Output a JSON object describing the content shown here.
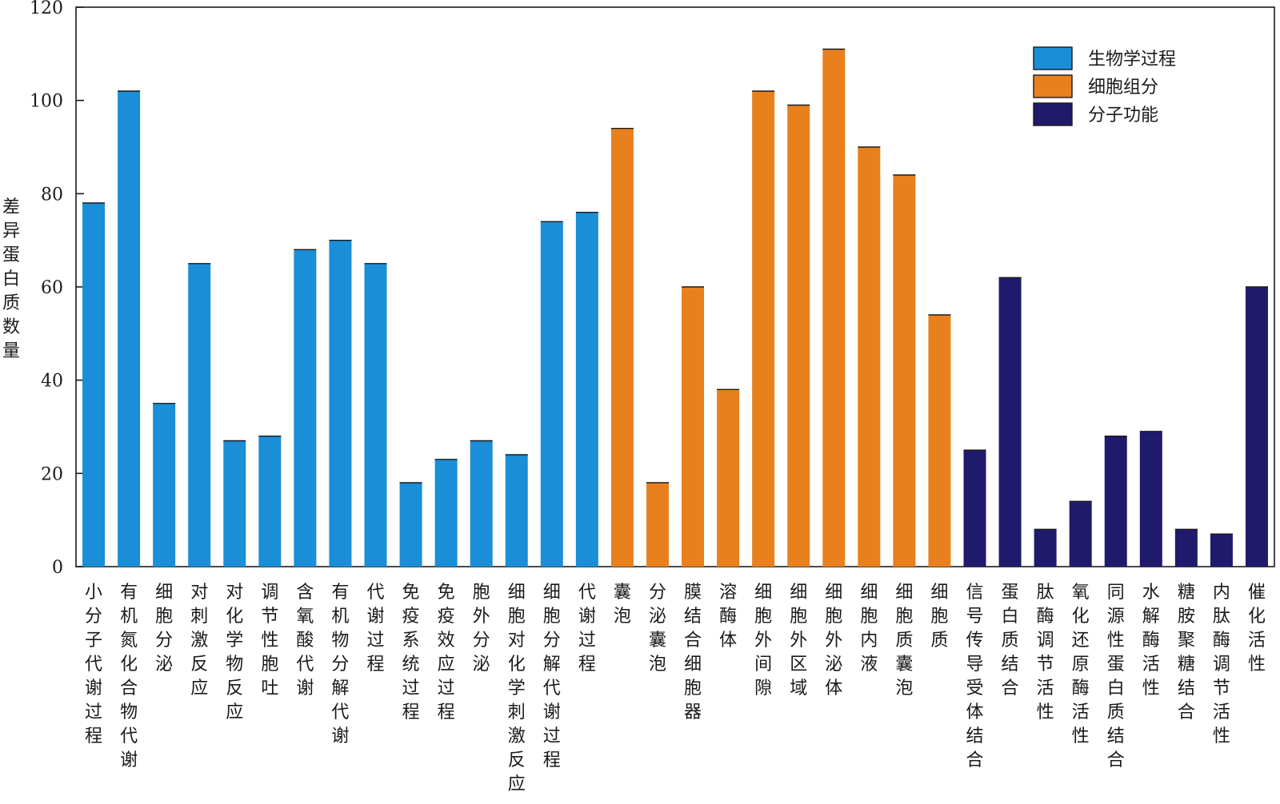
{
  "chart_data": {
    "type": "bar",
    "ylabel": "差异蛋白质数量",
    "ylim": [
      0,
      120
    ],
    "yticks": [
      0,
      20,
      40,
      60,
      80,
      100,
      120
    ],
    "grid": false,
    "legend_position": "top-right",
    "series": [
      {
        "name": "生物学过程",
        "color": "#1a8ed6",
        "categories": [
          "小分子代谢过程",
          "有机氮化合物代谢",
          "细胞分泌",
          "对刺激反应",
          "对化学物反应",
          "调节性胞吐",
          "含氧酸代谢",
          "有机物分解代谢",
          "代谢过程",
          "免疫系统过程",
          "免疫效应过程",
          "胞外分泌",
          "细胞对化学刺激反应",
          "细胞分解代谢过程",
          "代谢过程"
        ],
        "values": [
          78,
          102,
          35,
          65,
          27,
          28,
          68,
          70,
          65,
          18,
          23,
          27,
          24,
          74,
          76
        ]
      },
      {
        "name": "细胞组分",
        "color": "#e8801e",
        "categories": [
          "囊泡",
          "分泌囊泡",
          "膜结合细胞器",
          "溶酶体",
          "细胞外间隙",
          "细胞外区域",
          "细胞外泌体",
          "细胞内液",
          "细胞质囊泡",
          "细胞质"
        ],
        "values": [
          94,
          18,
          60,
          38,
          102,
          99,
          111,
          90,
          84,
          54
        ]
      },
      {
        "name": "分子功能",
        "color": "#1f1a6b",
        "categories": [
          "信号传导受体结合",
          "蛋白质结合",
          "肽酶调节活性",
          "氧化还原酶活性",
          "同源性蛋白质结合",
          "水解酶活性",
          "糖胺聚糖结合",
          "内肽酶调节活性",
          "催化活性"
        ],
        "values": [
          25,
          62,
          8,
          14,
          28,
          29,
          8,
          7,
          60
        ]
      }
    ]
  }
}
